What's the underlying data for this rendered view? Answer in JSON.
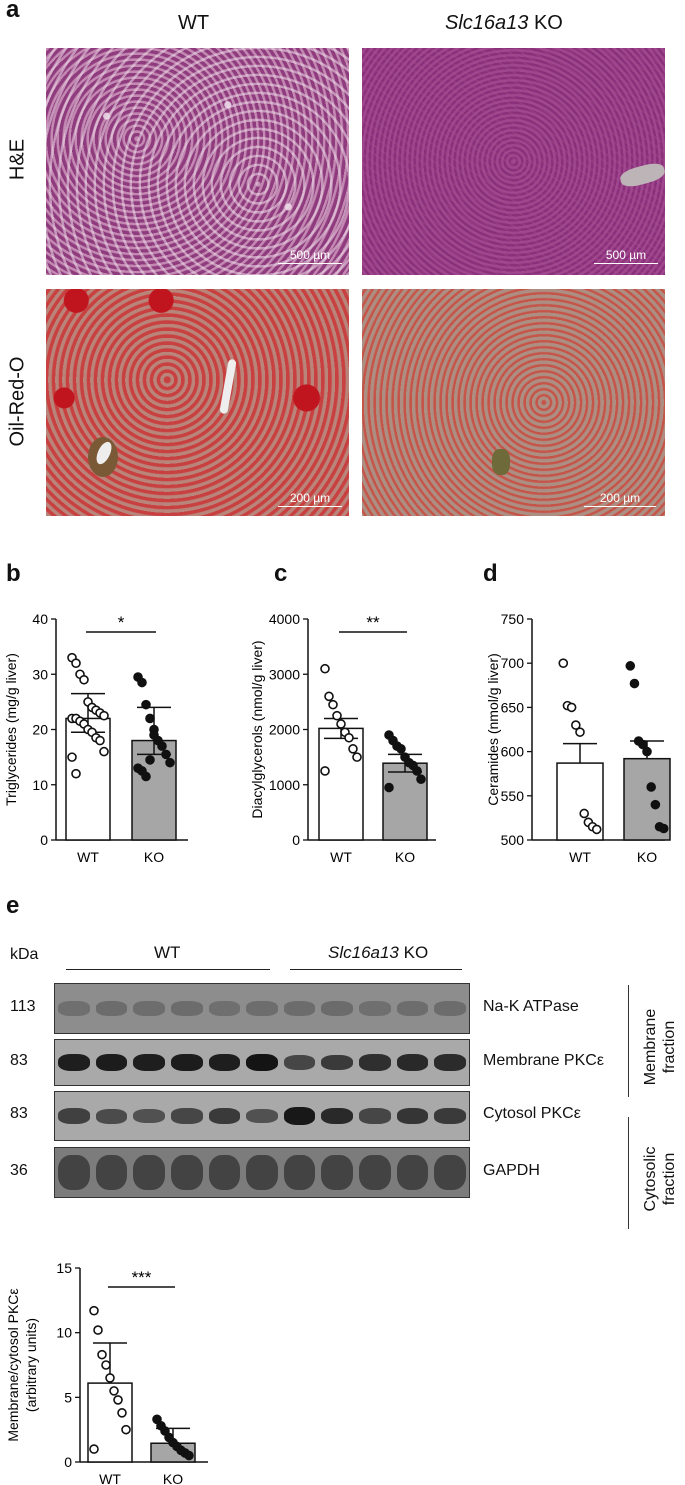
{
  "panel_a": {
    "letter": "a",
    "col_wt": "WT",
    "col_ko_gene": "Slc16a13",
    "col_ko_suffix": " KO",
    "row_he": "H&E",
    "row_oro": "Oil-Red-O",
    "scale_he_wt": "500 µm",
    "scale_he_ko": "500 µm",
    "scale_oro_wt": "200 µm",
    "scale_oro_ko": "200 µm"
  },
  "chart_data": [
    {
      "id": "b",
      "type": "bar",
      "letter": "b",
      "categories": [
        "WT",
        "KO"
      ],
      "ylabel": "Triglycerides (mg/g liver)",
      "ylim": [
        0,
        40
      ],
      "yticks": [
        0,
        10,
        20,
        30,
        40
      ],
      "means": [
        22,
        18
      ],
      "errors_upper": [
        26.5,
        24
      ],
      "errors_lower": [
        19.5,
        15.5
      ],
      "significance": "*",
      "points": [
        [
          33,
          32,
          30,
          29,
          25,
          24,
          23.5,
          23,
          22.5,
          22,
          22,
          21.5,
          21,
          20,
          19.5,
          18.5,
          18,
          16,
          15,
          12
        ],
        [
          29.5,
          28.5,
          24.5,
          22,
          20,
          18,
          17,
          15.5,
          14,
          13,
          12.5,
          11.5,
          14.5,
          19
        ]
      ]
    },
    {
      "id": "c",
      "type": "bar",
      "letter": "c",
      "categories": [
        "WT",
        "KO"
      ],
      "ylabel": "Diacylglycerols (nmol/g liver)",
      "ylim": [
        0,
        4000
      ],
      "yticks": [
        0,
        1000,
        2000,
        3000,
        4000
      ],
      "means": [
        2020,
        1390
      ],
      "errors_upper": [
        2200,
        1550
      ],
      "errors_lower": [
        1840,
        1230
      ],
      "significance": "**",
      "points": [
        [
          3100,
          2600,
          2450,
          2250,
          2100,
          1950,
          1850,
          1650,
          1500,
          1250
        ],
        [
          1900,
          1800,
          1700,
          1650,
          1500,
          1400,
          1350,
          1250,
          1100,
          950
        ]
      ]
    },
    {
      "id": "d",
      "type": "bar",
      "letter": "d",
      "categories": [
        "WT",
        "KO"
      ],
      "ylabel": "Ceramides (nmol/g liver)",
      "ylim": [
        500,
        750
      ],
      "yticks": [
        500,
        550,
        600,
        650,
        700,
        750
      ],
      "means": [
        587,
        592
      ],
      "errors_upper": [
        609,
        612
      ],
      "errors_lower": [
        587,
        592
      ],
      "significance": "",
      "points": [
        [
          700,
          652,
          650,
          630,
          622,
          530,
          520,
          515,
          512
        ],
        [
          697,
          677,
          612,
          608,
          600,
          560,
          540,
          515,
          513
        ]
      ]
    },
    {
      "id": "e",
      "type": "bar",
      "letter": "",
      "categories": [
        "WT",
        "KO"
      ],
      "ylabel_line1": "Membrane/cytosol PKCε",
      "ylabel_line2": "(arbitrary units)",
      "ylim": [
        0,
        15
      ],
      "yticks": [
        0,
        5,
        10,
        15
      ],
      "means": [
        6.1,
        1.45
      ],
      "errors_upper": [
        9.2,
        2.6
      ],
      "errors_lower": [
        6.1,
        1.45
      ],
      "significance": "***",
      "points": [
        [
          11.7,
          10.2,
          8.3,
          7.5,
          6.5,
          5.5,
          4.8,
          3.8,
          2.5,
          1.0
        ],
        [
          3.3,
          2.8,
          2.4,
          1.9,
          1.5,
          1.2,
          0.9,
          0.7,
          0.5
        ]
      ]
    }
  ],
  "panel_e": {
    "letter": "e",
    "kda_label": "kDa",
    "group_wt": "WT",
    "group_ko_gene": "Slc16a13",
    "group_ko_suffix": " KO",
    "blots": [
      {
        "kda": "113",
        "label": "Na-K ATPase",
        "intensities": [
          0.35,
          0.4,
          0.38,
          0.4,
          0.36,
          0.38,
          0.4,
          0.42,
          0.36,
          0.38,
          0.4
        ]
      },
      {
        "kda": "83",
        "label": "Membrane PKCε",
        "intensities": [
          0.9,
          0.92,
          0.9,
          0.92,
          0.9,
          0.98,
          0.55,
          0.65,
          0.75,
          0.8,
          0.78
        ]
      },
      {
        "kda": "83",
        "label": "Cytosol PKCε",
        "intensities": [
          0.6,
          0.5,
          0.45,
          0.55,
          0.65,
          0.45,
          0.95,
          0.8,
          0.55,
          0.7,
          0.65
        ]
      },
      {
        "kda": "36",
        "label": "GAPDH",
        "intensities": [
          0.55,
          0.55,
          0.55,
          0.55,
          0.55,
          0.55,
          0.55,
          0.55,
          0.55,
          0.55,
          0.55
        ]
      }
    ],
    "fraction_membrane_line1": "Membrane",
    "fraction_membrane_line2": "fraction",
    "fraction_cytosolic_line1": "Cytosolic",
    "fraction_cytosolic_line2": "fraction"
  }
}
